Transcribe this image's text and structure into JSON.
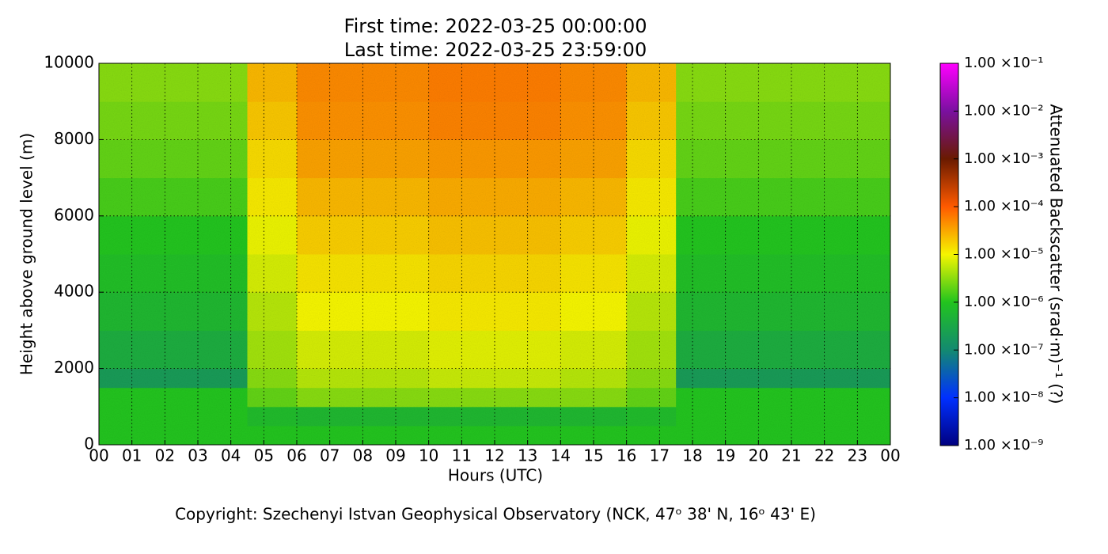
{
  "chart_data": {
    "type": "heatmap",
    "title": [
      "First time: 2022-03-25 00:00:00",
      "Last time: 2022-03-25 23:59:00"
    ],
    "xlabel": "Hours (UTC)",
    "ylabel": "Height above ground level (m)",
    "footer": "Copyright: Szechenyi Istvan Geophysical Observatory (NCK, 47ᵒ  38' N, 16ᵒ  43' E)",
    "xlim": [
      0,
      24
    ],
    "xticks": [
      {
        "value": 0,
        "label": "00"
      },
      {
        "value": 1,
        "label": "01"
      },
      {
        "value": 2,
        "label": "02"
      },
      {
        "value": 3,
        "label": "03"
      },
      {
        "value": 4,
        "label": "04"
      },
      {
        "value": 5,
        "label": "05"
      },
      {
        "value": 6,
        "label": "06"
      },
      {
        "value": 7,
        "label": "07"
      },
      {
        "value": 8,
        "label": "08"
      },
      {
        "value": 9,
        "label": "09"
      },
      {
        "value": 10,
        "label": "10"
      },
      {
        "value": 11,
        "label": "11"
      },
      {
        "value": 12,
        "label": "12"
      },
      {
        "value": 13,
        "label": "13"
      },
      {
        "value": 14,
        "label": "14"
      },
      {
        "value": 15,
        "label": "15"
      },
      {
        "value": 16,
        "label": "16"
      },
      {
        "value": 17,
        "label": "17"
      },
      {
        "value": 18,
        "label": "18"
      },
      {
        "value": 19,
        "label": "19"
      },
      {
        "value": 20,
        "label": "20"
      },
      {
        "value": 21,
        "label": "21"
      },
      {
        "value": 22,
        "label": "22"
      },
      {
        "value": 23,
        "label": "23"
      },
      {
        "value": 24,
        "label": "00"
      }
    ],
    "ylim": [
      0,
      10000
    ],
    "yticks": [
      0,
      2000,
      4000,
      6000,
      8000,
      10000
    ],
    "grid": true,
    "x_edges": [
      0,
      2,
      4.5,
      6,
      8,
      10,
      12,
      14,
      16,
      17.5,
      20,
      22,
      24
    ],
    "y_edges": [
      0,
      500,
      1000,
      1500,
      2000,
      3000,
      4000,
      5000,
      6000,
      7000,
      8000,
      9000,
      10000
    ],
    "z": [
      [
        1e-06,
        1e-06,
        1e-06,
        1e-06,
        1e-06,
        1e-06,
        1e-06,
        1e-06,
        1e-06,
        1e-06,
        1e-06,
        1e-06
      ],
      [
        1e-06,
        1e-06,
        7e-07,
        6e-07,
        6e-07,
        6e-07,
        6e-07,
        6e-07,
        7e-07,
        1e-06,
        1e-06,
        1e-06
      ],
      [
        1e-06,
        1e-06,
        2e-06,
        3e-06,
        3e-06,
        3e-06,
        3e-06,
        3e-06,
        2e-06,
        1e-06,
        1e-06,
        1e-06
      ],
      [
        2e-07,
        2e-07,
        3e-06,
        5e-06,
        5e-06,
        6e-06,
        6e-06,
        5e-06,
        3e-06,
        2e-07,
        2e-07,
        2e-07
      ],
      [
        4e-07,
        4e-07,
        4e-06,
        7e-06,
        7e-06,
        8e-06,
        8e-06,
        7e-06,
        4e-06,
        4e-07,
        4e-07,
        4e-07
      ],
      [
        6e-07,
        6e-07,
        5e-06,
        1e-05,
        1e-05,
        1.2e-05,
        1.2e-05,
        1e-05,
        5e-06,
        6e-07,
        6e-07,
        6e-07
      ],
      [
        8e-07,
        8e-07,
        7e-06,
        1.3e-05,
        1.3e-05,
        1.6e-05,
        1.6e-05,
        1.3e-05,
        7e-06,
        8e-07,
        8e-07,
        8e-07
      ],
      [
        1e-06,
        1e-06,
        9e-06,
        1.8e-05,
        1.8e-05,
        2.2e-05,
        2.2e-05,
        1.8e-05,
        9e-06,
        1e-06,
        1e-06,
        1e-06
      ],
      [
        1.5e-06,
        1.5e-06,
        1.2e-05,
        2.5e-05,
        2.5e-05,
        3e-05,
        3e-05,
        2.5e-05,
        1.2e-05,
        1.5e-06,
        1.5e-06,
        1.5e-06
      ],
      [
        2e-06,
        2e-06,
        1.5e-05,
        3.5e-05,
        3.5e-05,
        4e-05,
        4e-05,
        3.5e-05,
        1.5e-05,
        2e-06,
        2e-06,
        2e-06
      ],
      [
        2.5e-06,
        2.5e-06,
        2e-05,
        4.5e-05,
        4.5e-05,
        5.5e-05,
        5.5e-05,
        4.5e-05,
        2e-05,
        2.5e-06,
        2.5e-06,
        2.5e-06
      ],
      [
        3e-06,
        3e-06,
        2.5e-05,
        5e-05,
        5e-05,
        6e-05,
        6e-05,
        5e-05,
        2.5e-05,
        3e-06,
        3e-06,
        3e-06
      ]
    ],
    "colorbar": {
      "label": "Attenuated Backscatter (srad·m)⁻¹ (?)",
      "log_scale": true,
      "clim": [
        1e-09,
        0.1
      ],
      "colors": [
        "#000080",
        "#0030ff",
        "#138a70",
        "#22c41e",
        "#f5f500",
        "#ff5a00",
        "#6a1a00",
        "#7a10a0",
        "#ff00ff"
      ],
      "ticks": [
        {
          "value": 1e-09,
          "label": "1.00 ×10⁻⁹"
        },
        {
          "value": 1e-08,
          "label": "1.00 ×10⁻⁸"
        },
        {
          "value": 1e-07,
          "label": "1.00 ×10⁻⁷"
        },
        {
          "value": 1e-06,
          "label": "1.00 ×10⁻⁶"
        },
        {
          "value": 1e-05,
          "label": "1.00 ×10⁻⁵"
        },
        {
          "value": 0.0001,
          "label": "1.00 ×10⁻⁴"
        },
        {
          "value": 0.001,
          "label": "1.00 ×10⁻³"
        },
        {
          "value": 0.01,
          "label": "1.00 ×10⁻²"
        },
        {
          "value": 0.1,
          "label": "1.00 ×10⁻¹"
        }
      ]
    }
  }
}
